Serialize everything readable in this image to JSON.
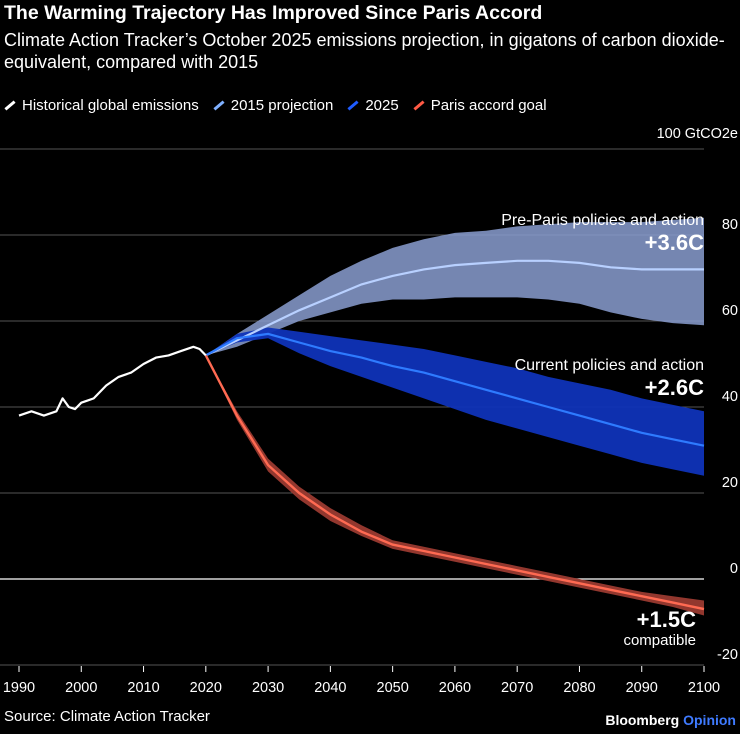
{
  "header": {
    "title": "The Warming Trajectory Has Improved Since Paris Accord",
    "subtitle": "Climate Action Tracker’s October 2025 emissions projection, in gigatons of carbon dioxide-equivalent, compared with 2015"
  },
  "legend": [
    {
      "label": "Historical global emissions",
      "color": "#ffffff"
    },
    {
      "label": "2015 projection",
      "color": "#7fb0ff"
    },
    {
      "label": "2025",
      "color": "#1f5cff"
    },
    {
      "label": "Paris accord goal",
      "color": "#ff5a45"
    }
  ],
  "footer": {
    "source": "Source: Climate Action Tracker",
    "brand_main": "Bloomberg",
    "brand_accent": "Opinion"
  },
  "colors": {
    "historical": "#ffffff",
    "proj2015_band": "#8a9dd0",
    "proj2015_line": "#b8d0ff",
    "current_band": "#0f33b8",
    "current_line": "#2e7bff",
    "paris_band": "#9a3a30",
    "paris_line": "#ff6a52",
    "grid": "#555555",
    "zero": "#ffffff"
  },
  "chart_data": {
    "type": "area",
    "unit_label": "100 GtCO2e",
    "xlim": [
      1990,
      2100
    ],
    "ylim": [
      -20,
      100
    ],
    "x_ticks": [
      1990,
      2000,
      2010,
      2020,
      2030,
      2040,
      2050,
      2060,
      2070,
      2080,
      2090,
      2100
    ],
    "y_ticks": [
      -20,
      0,
      20,
      40,
      60,
      80
    ],
    "y_tick_labels": [
      "-20",
      "0",
      "20",
      "40",
      "60",
      "80"
    ],
    "grid": true,
    "annotations": [
      {
        "text": "Pre-Paris policies and action",
        "value": "+3.6C"
      },
      {
        "text": "Current policies and action",
        "value": "+2.6C"
      },
      {
        "text": "compatible",
        "value": "+1.5C"
      }
    ],
    "series": [
      {
        "name": "Historical global emissions",
        "x": [
          1990,
          1992,
          1994,
          1996,
          1997,
          1998,
          1999,
          2000,
          2001,
          2002,
          2004,
          2006,
          2008,
          2010,
          2012,
          2014,
          2016,
          2018,
          2019,
          2020
        ],
        "y": [
          38,
          39,
          38,
          39,
          42,
          40,
          39.5,
          41,
          41.5,
          42,
          45,
          47,
          48,
          50,
          51.5,
          52,
          53,
          54,
          53.5,
          52
        ]
      },
      {
        "name": "2015 projection",
        "x": [
          2020,
          2025,
          2030,
          2035,
          2040,
          2045,
          2050,
          2055,
          2060,
          2065,
          2070,
          2075,
          2080,
          2085,
          2090,
          2095,
          2100
        ],
        "y": [
          52,
          55.5,
          59,
          62.5,
          65.5,
          68.5,
          70.5,
          72,
          73,
          73.5,
          74,
          74,
          73.5,
          72.5,
          72,
          72,
          72
        ],
        "low": [
          52,
          54,
          57,
          60,
          62,
          64,
          65,
          65,
          65.5,
          65.5,
          65.5,
          65,
          64,
          62,
          60.5,
          59.5,
          59
        ],
        "high": [
          52,
          57,
          61.5,
          66,
          70.5,
          74,
          77,
          79,
          80.5,
          81,
          82,
          82.5,
          83,
          83,
          83,
          83.5,
          84
        ]
      },
      {
        "name": "Current policies and action",
        "x": [
          2020,
          2025,
          2030,
          2035,
          2040,
          2045,
          2050,
          2055,
          2060,
          2065,
          2070,
          2075,
          2080,
          2085,
          2090,
          2095,
          2100
        ],
        "y": [
          52,
          56,
          57,
          55,
          53,
          51.5,
          49.5,
          48,
          46,
          44,
          42,
          40,
          38,
          36,
          34,
          32.5,
          31
        ],
        "low": [
          52,
          55,
          56,
          52.5,
          49.5,
          47,
          44.5,
          42,
          39.5,
          37,
          35,
          33,
          31,
          29,
          27,
          25.5,
          24
        ],
        "high": [
          52,
          57,
          58.5,
          57.5,
          56.5,
          55.5,
          54.5,
          53.5,
          52,
          50.5,
          49,
          47,
          45.5,
          44,
          42,
          40.5,
          39
        ]
      },
      {
        "name": "Paris accord goal",
        "x": [
          2020,
          2025,
          2030,
          2035,
          2040,
          2045,
          2050,
          2055,
          2060,
          2065,
          2070,
          2075,
          2080,
          2085,
          2090,
          2095,
          2100
        ],
        "y": [
          52,
          38,
          26.5,
          20,
          15,
          11,
          8,
          6.5,
          5,
          3.5,
          2,
          0.5,
          -1,
          -2.5,
          -4,
          -5.5,
          -7
        ],
        "low": [
          52,
          37,
          25,
          18.5,
          13.5,
          10,
          7,
          5.5,
          4,
          2.5,
          1,
          -0.5,
          -2,
          -3.5,
          -5,
          -6.5,
          -8.5
        ],
        "high": [
          52,
          39,
          28,
          21.5,
          16.5,
          12.5,
          9,
          7.5,
          6,
          4.5,
          3,
          1.5,
          0,
          -1.5,
          -3,
          -4,
          -5
        ]
      }
    ]
  }
}
